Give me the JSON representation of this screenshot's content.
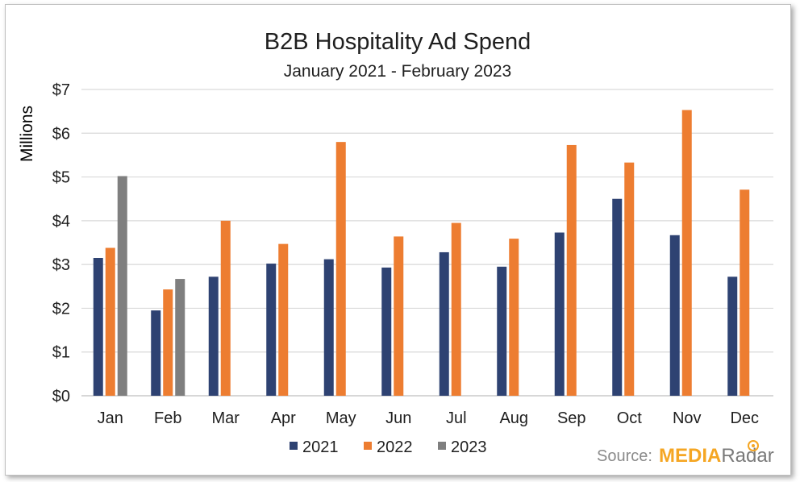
{
  "chart_data": {
    "type": "bar",
    "title": "B2B Hospitality Ad Spend",
    "subtitle": "January 2021 - February 2023",
    "ylabel": "Millions",
    "xlabel": "",
    "ylim": [
      0,
      7
    ],
    "yticks": [
      "$0",
      "$1",
      "$2",
      "$3",
      "$4",
      "$5",
      "$6",
      "$7"
    ],
    "grid": true,
    "legend_position": "bottom",
    "categories": [
      "Jan",
      "Feb",
      "Mar",
      "Apr",
      "May",
      "Jun",
      "Jul",
      "Aug",
      "Sep",
      "Oct",
      "Nov",
      "Dec"
    ],
    "series": [
      {
        "name": "2021",
        "color": "#2e4272",
        "values": [
          3.15,
          1.95,
          2.72,
          3.02,
          3.12,
          2.93,
          3.28,
          2.95,
          3.73,
          4.5,
          3.67,
          2.72
        ]
      },
      {
        "name": "2022",
        "color": "#ed7d31",
        "values": [
          3.38,
          2.43,
          4.0,
          3.47,
          5.8,
          3.64,
          3.95,
          3.59,
          5.73,
          5.33,
          6.53,
          4.71
        ]
      },
      {
        "name": "2023",
        "color": "#7f7f7f",
        "values": [
          5.02,
          2.67,
          null,
          null,
          null,
          null,
          null,
          null,
          null,
          null,
          null,
          null
        ]
      }
    ]
  },
  "source": {
    "label": "Source:",
    "brand_part1": "MEDIA",
    "brand_part2": "Radar",
    "brand_color": "#f5a623"
  }
}
